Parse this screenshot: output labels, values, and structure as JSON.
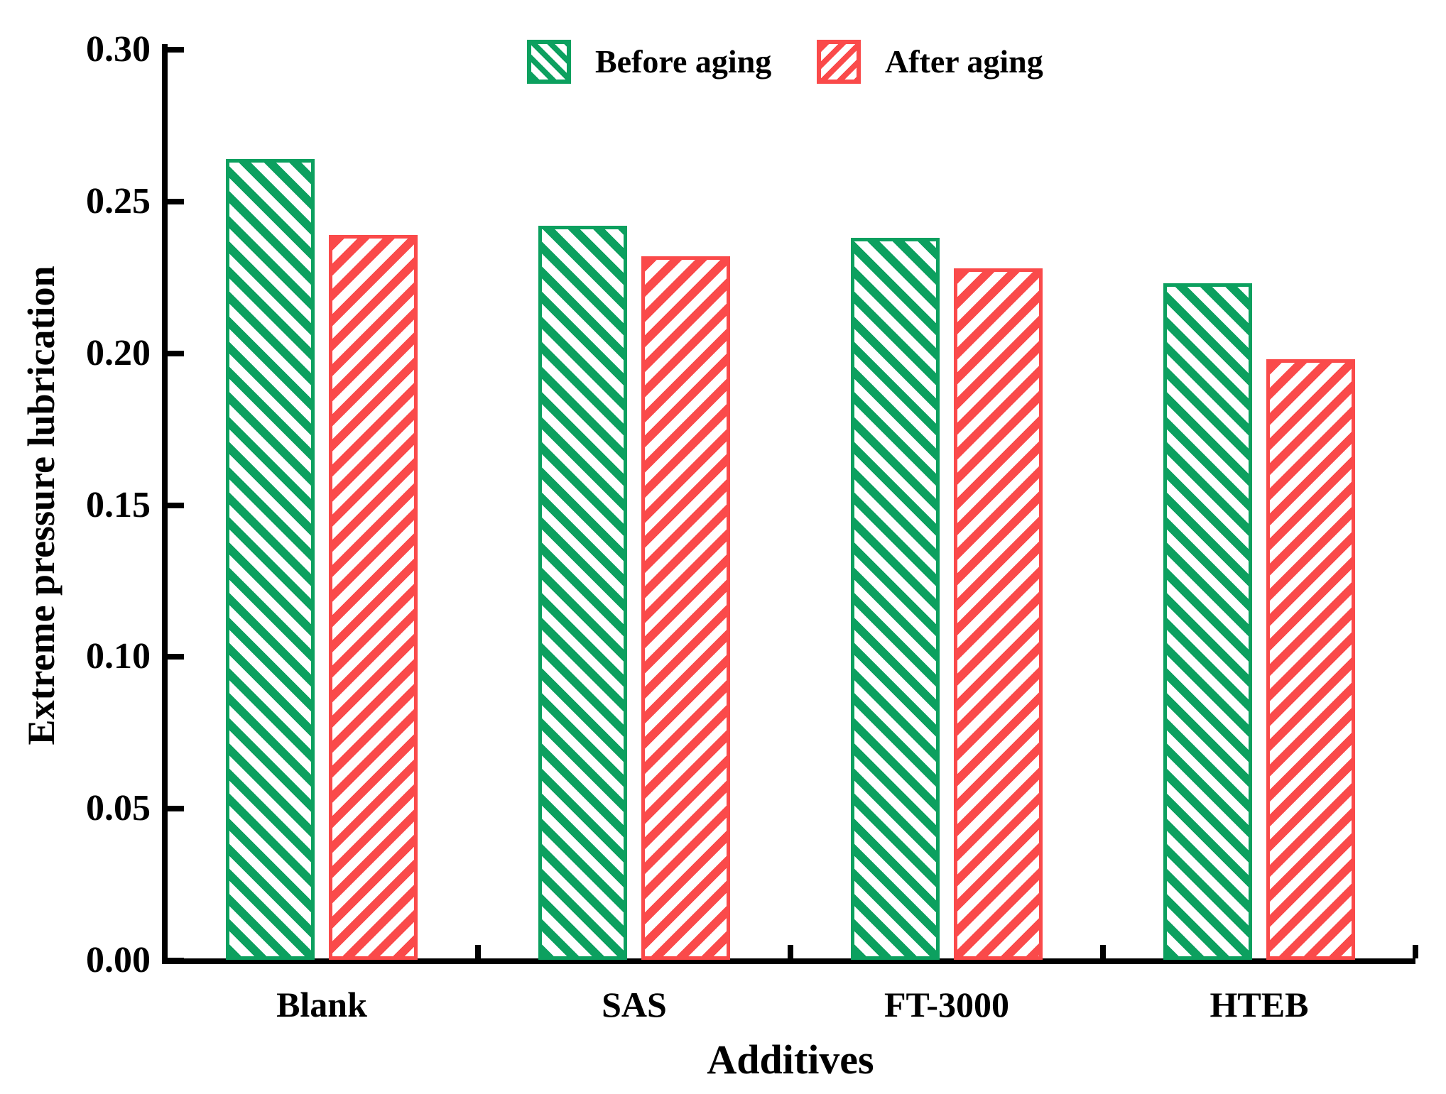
{
  "chart_data": {
    "type": "bar",
    "title": "",
    "xlabel": "Additives",
    "ylabel": "Extreme pressure lubrication",
    "categories": [
      "Blank",
      "SAS",
      "FT-3000",
      "HTEB"
    ],
    "series": [
      {
        "name": "Before aging",
        "color": "#0ca05f",
        "hatch": "\\",
        "values": [
          0.264,
          0.242,
          0.238,
          0.223
        ]
      },
      {
        "name": "After aging",
        "color": "#fa4a4a",
        "hatch": "/",
        "values": [
          0.239,
          0.232,
          0.228,
          0.198
        ]
      }
    ],
    "ylim": [
      0.0,
      0.3
    ],
    "ytick_step": 0.05,
    "yticks": [
      "0.00",
      "0.05",
      "0.10",
      "0.15",
      "0.20",
      "0.25",
      "0.30"
    ],
    "legend_position": "top-center",
    "grid": false,
    "axis_color": "#000000",
    "background_color": "#ffffff"
  }
}
